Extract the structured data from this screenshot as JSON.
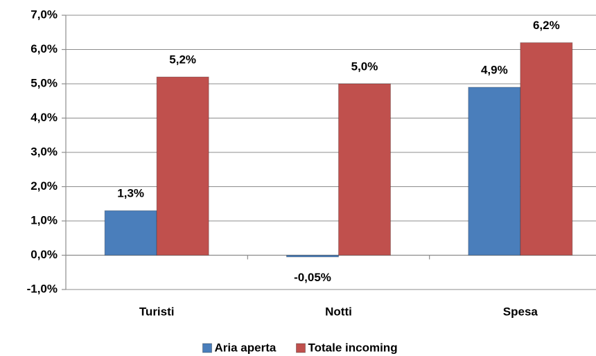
{
  "chart_data": {
    "type": "bar",
    "categories": [
      "Turisti",
      "Notti",
      "Spesa"
    ],
    "series": [
      {
        "name": "Aria aperta",
        "color": "#4a7ebb",
        "values": [
          1.3,
          -0.05,
          4.9
        ],
        "value_labels": [
          "1,3%",
          "-0,05%",
          "4,9%"
        ]
      },
      {
        "name": "Totale incoming",
        "color": "#c0504d",
        "values": [
          5.2,
          5.0,
          6.2
        ],
        "value_labels": [
          "5,2%",
          "5,0%",
          "6,2%"
        ]
      }
    ],
    "ylim": [
      -1,
      7
    ],
    "yticks": [
      {
        "value": -1,
        "label": "-1,0%"
      },
      {
        "value": 0,
        "label": "0,0%"
      },
      {
        "value": 1,
        "label": "1,0%"
      },
      {
        "value": 2,
        "label": "2,0%"
      },
      {
        "value": 3,
        "label": "3,0%"
      },
      {
        "value": 4,
        "label": "4,0%"
      },
      {
        "value": 5,
        "label": "5,0%"
      },
      {
        "value": 6,
        "label": "6,0%"
      },
      {
        "value": 7,
        "label": "7,0%"
      }
    ],
    "grid": true,
    "legend": "bottom"
  }
}
